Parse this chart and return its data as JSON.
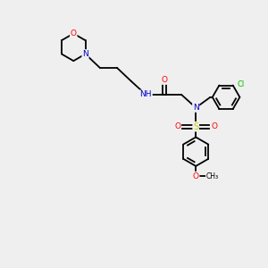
{
  "bg_color": "#efefef",
  "atom_colors": {
    "C": "#000000",
    "N": "#0000cc",
    "O": "#ff0000",
    "S": "#cccc00",
    "Cl": "#00bb00",
    "H": "#666666"
  },
  "bond_color": "#000000",
  "bond_lw": 1.3,
  "figsize": [
    3.0,
    3.0
  ],
  "dpi": 100
}
